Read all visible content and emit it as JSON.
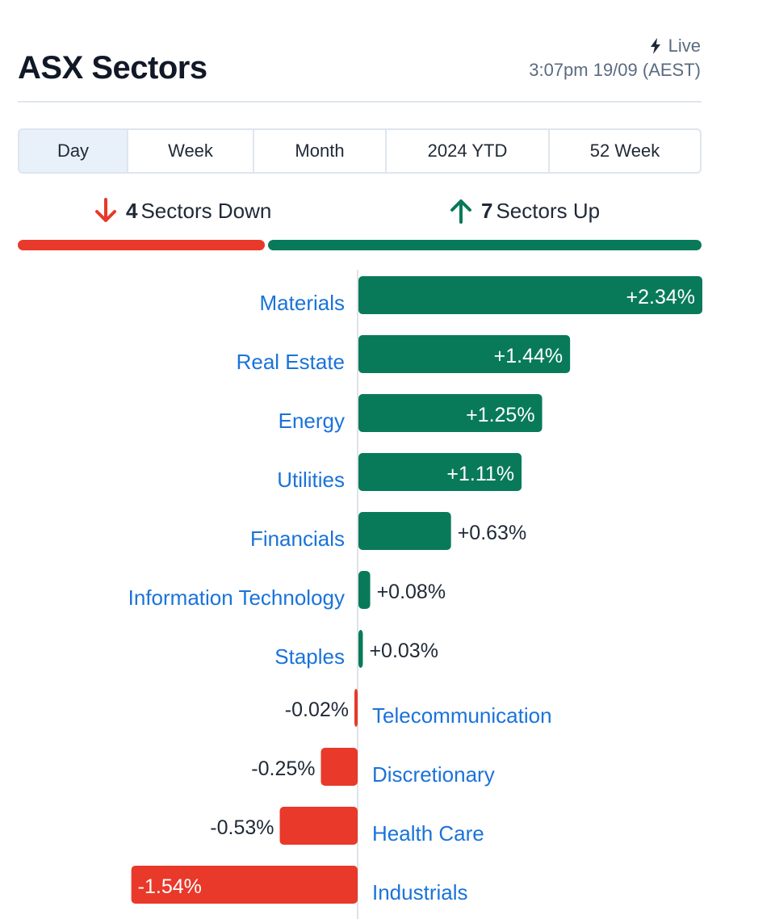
{
  "header": {
    "title": "ASX Sectors",
    "live_label": "Live",
    "live_icon": "lightning-icon",
    "timestamp": "3:07pm 19/09 (AEST)"
  },
  "tabs": [
    {
      "label": "Day",
      "active": true
    },
    {
      "label": "Week",
      "active": false
    },
    {
      "label": "Month",
      "active": false
    },
    {
      "label": "2024 YTD",
      "active": false
    },
    {
      "label": "52 Week",
      "active": false
    }
  ],
  "summary": {
    "down_count": "4",
    "down_text": "Sectors Down",
    "up_count": "7",
    "up_text": "Sectors Up",
    "down_icon": "arrow-down-icon",
    "up_icon": "arrow-up-icon"
  },
  "colors": {
    "positive": "#087a5a",
    "negative": "#e8392a",
    "link": "#1a73d9",
    "text": "#1f2937"
  },
  "chart_data": {
    "type": "bar",
    "orientation": "horizontal",
    "categories": [
      "Materials",
      "Real Estate",
      "Energy",
      "Utilities",
      "Financials",
      "Information Technology",
      "Staples",
      "Telecommunication",
      "Discretionary",
      "Health Care",
      "Industrials"
    ],
    "values": [
      2.34,
      1.44,
      1.25,
      1.11,
      0.63,
      0.08,
      0.03,
      -0.02,
      -0.25,
      -0.53,
      -1.54
    ],
    "value_labels": [
      "+2.34%",
      "+1.44%",
      "+1.25%",
      "+1.11%",
      "+0.63%",
      "+0.08%",
      "+0.03%",
      "-0.02%",
      "-0.25%",
      "-0.53%",
      "-1.54%"
    ],
    "unit": "%"
  }
}
